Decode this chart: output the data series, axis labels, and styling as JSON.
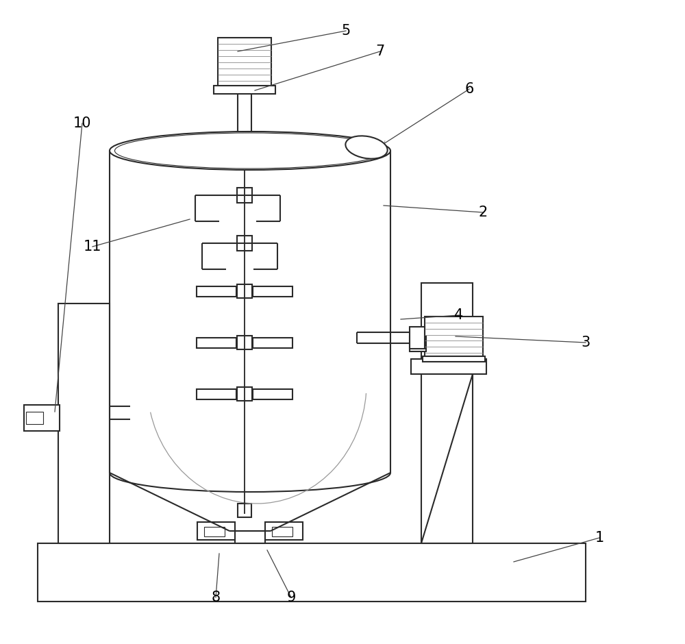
{
  "bg_color": "#ffffff",
  "line_color": "#2a2a2a",
  "line_width": 1.5,
  "label_color": "#000000",
  "label_fontsize": 15,
  "ann_color": "#444444",
  "ann_lw": 0.9
}
